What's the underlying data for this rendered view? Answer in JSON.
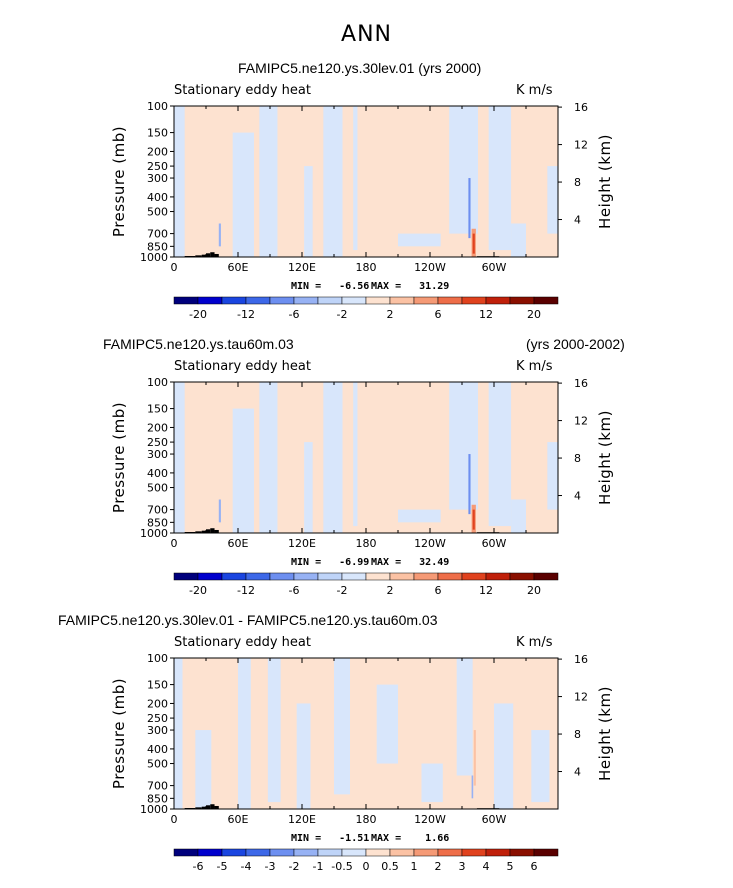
{
  "title": "ANN",
  "panels": [
    {
      "case_name": "FAMIPC5.ne120.ys.30lev.01 (yrs 2000)",
      "years": "",
      "variable": "Stationary eddy heat",
      "units": "K m/s",
      "min_label": "MIN =   -6.56",
      "max_label": "MAX =   31.29",
      "colorbar_labels": [
        "-20",
        "-12",
        "-6",
        "-2",
        "2",
        "6",
        "12",
        "20"
      ]
    },
    {
      "case_name": "FAMIPC5.ne120.ys.tau60m.03",
      "years": "(yrs 2000-2002)",
      "variable": "Stationary eddy heat",
      "units": "K m/s",
      "min_label": "MIN =   -6.99",
      "max_label": "MAX =   32.49",
      "colorbar_labels": [
        "-20",
        "-12",
        "-6",
        "-2",
        "2",
        "6",
        "12",
        "20"
      ]
    },
    {
      "case_name": "FAMIPC5.ne120.ys.30lev.01 - FAMIPC5.ne120.ys.tau60m.03",
      "years": "",
      "variable": "Stationary eddy heat",
      "units": "K m/s",
      "min_label": "MIN =   -1.51",
      "max_label": "MAX =    1.66",
      "colorbar_labels": [
        "-6",
        "-5",
        "-4",
        "-3",
        "-2",
        "-1",
        "-0.5",
        "0",
        "0.5",
        "1",
        "2",
        "3",
        "4",
        "5",
        "6"
      ]
    }
  ],
  "chart_data": [
    {
      "type": "heatmap",
      "title": "FAMIPC5.ne120.ys.30lev.01 (yrs 2000)",
      "variable": "Stationary eddy heat",
      "units": "K m/s",
      "x_tick_labels": [
        "0",
        "60E",
        "120E",
        "180",
        "120W",
        "60W"
      ],
      "x_ticks_deg": [
        0,
        60,
        120,
        180,
        240,
        300
      ],
      "xlim_deg": [
        0,
        360
      ],
      "ylabel_left": "Pressure (mb)",
      "ylabel_right": "Height (km)",
      "pressure_ticks": [
        100,
        150,
        200,
        250,
        300,
        400,
        500,
        700,
        850,
        1000
      ],
      "height_ticks_km": [
        4,
        8,
        12,
        16
      ],
      "ylim_mb": [
        1000,
        100
      ],
      "min": -6.56,
      "max": 31.29,
      "contour_levels": [
        -20,
        -16,
        -12,
        -8,
        -6,
        -4,
        -2,
        0,
        2,
        4,
        6,
        8,
        12,
        16,
        20
      ],
      "colorbar": [
        "#00007c",
        "#0000cd",
        "#1a45e0",
        "#3d68e8",
        "#6d8ff0",
        "#97b2f4",
        "#bfd4f8",
        "#d8e6fb",
        "#fde2d0",
        "#fbc2a4",
        "#f59a76",
        "#ee6e49",
        "#e0421e",
        "#c0200a",
        "#8a0f00",
        "#5a0000"
      ]
    },
    {
      "type": "heatmap",
      "title": "FAMIPC5.ne120.ys.tau60m.03",
      "variable": "Stationary eddy heat",
      "units": "K m/s",
      "x_tick_labels": [
        "0",
        "60E",
        "120E",
        "180",
        "120W",
        "60W"
      ],
      "x_ticks_deg": [
        0,
        60,
        120,
        180,
        240,
        300
      ],
      "xlim_deg": [
        0,
        360
      ],
      "ylabel_left": "Pressure (mb)",
      "ylabel_right": "Height (km)",
      "pressure_ticks": [
        100,
        150,
        200,
        250,
        300,
        400,
        500,
        700,
        850,
        1000
      ],
      "height_ticks_km": [
        4,
        8,
        12,
        16
      ],
      "ylim_mb": [
        1000,
        100
      ],
      "min": -6.99,
      "max": 32.49,
      "contour_levels": [
        -20,
        -16,
        -12,
        -8,
        -6,
        -4,
        -2,
        0,
        2,
        4,
        6,
        8,
        12,
        16,
        20
      ],
      "colorbar": [
        "#00007c",
        "#0000cd",
        "#1a45e0",
        "#3d68e8",
        "#6d8ff0",
        "#97b2f4",
        "#bfd4f8",
        "#d8e6fb",
        "#fde2d0",
        "#fbc2a4",
        "#f59a76",
        "#ee6e49",
        "#e0421e",
        "#c0200a",
        "#8a0f00",
        "#5a0000"
      ]
    },
    {
      "type": "heatmap",
      "title": "FAMIPC5.ne120.ys.30lev.01 - FAMIPC5.ne120.ys.tau60m.03",
      "variable": "Stationary eddy heat",
      "units": "K m/s",
      "x_tick_labels": [
        "0",
        "60E",
        "120E",
        "180",
        "120W",
        "60W"
      ],
      "x_ticks_deg": [
        0,
        60,
        120,
        180,
        240,
        300
      ],
      "xlim_deg": [
        0,
        360
      ],
      "ylabel_left": "Pressure (mb)",
      "ylabel_right": "Height (km)",
      "pressure_ticks": [
        100,
        150,
        200,
        250,
        300,
        400,
        500,
        700,
        850,
        1000
      ],
      "height_ticks_km": [
        4,
        8,
        12,
        16
      ],
      "ylim_mb": [
        1000,
        100
      ],
      "min": -1.51,
      "max": 1.66,
      "contour_levels": [
        -6,
        -5,
        -4,
        -3,
        -2,
        -1,
        -0.5,
        0,
        0.5,
        1,
        2,
        3,
        4,
        5,
        6
      ],
      "colorbar": [
        "#00007c",
        "#0000cd",
        "#1a45e0",
        "#3d68e8",
        "#6d8ff0",
        "#97b2f4",
        "#bfd4f8",
        "#d8e6fb",
        "#fde2d0",
        "#fbc2a4",
        "#f59a76",
        "#ee6e49",
        "#e0421e",
        "#c0200a",
        "#8a0f00",
        "#5a0000"
      ]
    }
  ]
}
